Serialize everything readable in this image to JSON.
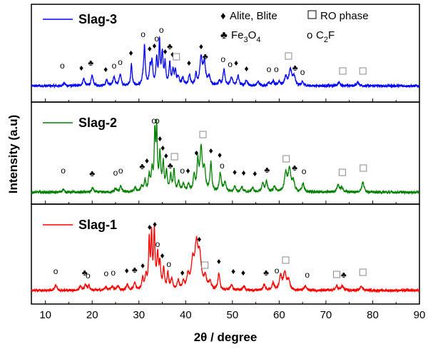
{
  "chart_data": {
    "type": "line",
    "xlabel": "2θ / degree",
    "ylabel": "Intensity (a.u)",
    "xlim": [
      7,
      90
    ],
    "x_ticks": [
      "10",
      "20",
      "30",
      "40",
      "50",
      "60",
      "70",
      "80",
      "90"
    ],
    "grid": false,
    "legend_position": "top-right",
    "legend": [
      {
        "symbol": "♦",
        "label": "Alite, Blite"
      },
      {
        "symbol": "□",
        "label": "RO phase"
      },
      {
        "symbol": "♣",
        "label": "Fe3O4"
      },
      {
        "symbol": "o",
        "label": "C2F"
      }
    ],
    "series": [
      {
        "name": "Slag-3",
        "color": "#0000ff",
        "baseline": 0.12,
        "peaks": [
          [
            14.0,
            0.04,
            0.25
          ],
          [
            18.2,
            0.1,
            0.25
          ],
          [
            20.0,
            0.14,
            0.25
          ],
          [
            23.1,
            0.08,
            0.25
          ],
          [
            24.7,
            0.12,
            0.25
          ],
          [
            26.0,
            0.16,
            0.25
          ],
          [
            28.4,
            0.3,
            0.18
          ],
          [
            30.9,
            0.1,
            0.25
          ],
          [
            31.2,
            0.52,
            0.18
          ],
          [
            32.4,
            0.25,
            0.2
          ],
          [
            32.8,
            0.3,
            0.2
          ],
          [
            33.8,
            0.38,
            0.18
          ],
          [
            34.4,
            0.6,
            0.15
          ],
          [
            35.0,
            0.45,
            0.2
          ],
          [
            35.6,
            0.3,
            0.18
          ],
          [
            36.6,
            0.3,
            0.2
          ],
          [
            37.3,
            0.2,
            0.2
          ],
          [
            37.8,
            0.18,
            0.2
          ],
          [
            38.4,
            0.12,
            0.25
          ],
          [
            39.4,
            0.1,
            0.25
          ],
          [
            40.8,
            0.14,
            0.25
          ],
          [
            42.2,
            0.16,
            0.2
          ],
          [
            43.3,
            0.38,
            0.3
          ],
          [
            44.0,
            0.3,
            0.3
          ],
          [
            45.0,
            0.12,
            0.3
          ],
          [
            47.2,
            0.06,
            0.25
          ],
          [
            48.2,
            0.22,
            0.25
          ],
          [
            49.8,
            0.12,
            0.25
          ],
          [
            51.2,
            0.14,
            0.25
          ],
          [
            53.0,
            0.08,
            0.25
          ],
          [
            55.5,
            0.06,
            0.25
          ],
          [
            57.8,
            0.05,
            0.25
          ],
          [
            58.7,
            0.06,
            0.25
          ],
          [
            60.0,
            0.06,
            0.25
          ],
          [
            61.4,
            0.12,
            0.3
          ],
          [
            62.4,
            0.22,
            0.35
          ],
          [
            63.2,
            0.12,
            0.3
          ],
          [
            65.0,
            0.05,
            0.25
          ],
          [
            72.8,
            0.05,
            0.3
          ],
          [
            76.8,
            0.05,
            0.3
          ]
        ]
      },
      {
        "name": "Slag-2",
        "color": "#008000",
        "baseline": 0.12,
        "peaks": [
          [
            13.8,
            0.04,
            0.25
          ],
          [
            20.1,
            0.06,
            0.25
          ],
          [
            25.0,
            0.05,
            0.25
          ],
          [
            26.1,
            0.08,
            0.25
          ],
          [
            29.2,
            0.06,
            0.25
          ],
          [
            30.6,
            0.08,
            0.25
          ],
          [
            31.3,
            0.16,
            0.2
          ],
          [
            32.2,
            0.22,
            0.2
          ],
          [
            32.8,
            0.28,
            0.2
          ],
          [
            33.4,
            0.78,
            0.16
          ],
          [
            33.8,
            0.84,
            0.16
          ],
          [
            34.5,
            0.5,
            0.2
          ],
          [
            35.2,
            0.38,
            0.2
          ],
          [
            35.9,
            0.26,
            0.2
          ],
          [
            36.8,
            0.22,
            0.2
          ],
          [
            37.5,
            0.3,
            0.2
          ],
          [
            38.5,
            0.14,
            0.25
          ],
          [
            39.5,
            0.1,
            0.25
          ],
          [
            40.6,
            0.1,
            0.25
          ],
          [
            41.8,
            0.22,
            0.22
          ],
          [
            42.6,
            0.4,
            0.22
          ],
          [
            43.3,
            0.58,
            0.28
          ],
          [
            44.0,
            0.3,
            0.28
          ],
          [
            45.4,
            0.4,
            0.22
          ],
          [
            47.4,
            0.26,
            0.25
          ],
          [
            48.4,
            0.14,
            0.25
          ],
          [
            50.5,
            0.08,
            0.25
          ],
          [
            52.0,
            0.07,
            0.25
          ],
          [
            54.3,
            0.06,
            0.25
          ],
          [
            56.5,
            0.12,
            0.25
          ],
          [
            57.3,
            0.14,
            0.25
          ],
          [
            59.0,
            0.08,
            0.25
          ],
          [
            61.4,
            0.26,
            0.3
          ],
          [
            62.2,
            0.3,
            0.35
          ],
          [
            63.0,
            0.14,
            0.3
          ],
          [
            65.1,
            0.12,
            0.25
          ],
          [
            72.6,
            0.1,
            0.3
          ],
          [
            73.4,
            0.06,
            0.3
          ],
          [
            77.9,
            0.14,
            0.3
          ]
        ]
      },
      {
        "name": "Slag-1",
        "color": "#ff0000",
        "baseline": 0.1,
        "peaks": [
          [
            12.2,
            0.08,
            0.25
          ],
          [
            17.5,
            0.06,
            0.25
          ],
          [
            18.6,
            0.08,
            0.25
          ],
          [
            19.3,
            0.06,
            0.25
          ],
          [
            22.9,
            0.05,
            0.25
          ],
          [
            24.3,
            0.06,
            0.25
          ],
          [
            25.5,
            0.06,
            0.25
          ],
          [
            27.5,
            0.08,
            0.25
          ],
          [
            29.1,
            0.1,
            0.25
          ],
          [
            30.8,
            0.16,
            0.22
          ],
          [
            31.5,
            0.2,
            0.2
          ],
          [
            32.2,
            0.68,
            0.16
          ],
          [
            32.7,
            0.74,
            0.16
          ],
          [
            33.3,
            0.8,
            0.18
          ],
          [
            34.0,
            0.46,
            0.2
          ],
          [
            34.5,
            0.34,
            0.2
          ],
          [
            35.3,
            0.28,
            0.2
          ],
          [
            36.2,
            0.22,
            0.2
          ],
          [
            37.0,
            0.14,
            0.25
          ],
          [
            38.4,
            0.12,
            0.25
          ],
          [
            39.5,
            0.1,
            0.25
          ],
          [
            40.5,
            0.18,
            0.3
          ],
          [
            41.5,
            0.34,
            0.4
          ],
          [
            42.3,
            0.56,
            0.4
          ],
          [
            43.0,
            0.42,
            0.4
          ],
          [
            44.2,
            0.16,
            0.35
          ],
          [
            45.2,
            0.1,
            0.3
          ],
          [
            47.1,
            0.22,
            0.25
          ],
          [
            49.8,
            0.08,
            0.25
          ],
          [
            52.5,
            0.06,
            0.25
          ],
          [
            56.8,
            0.08,
            0.25
          ],
          [
            58.7,
            0.1,
            0.25
          ],
          [
            60.3,
            0.2,
            0.3
          ],
          [
            61.2,
            0.24,
            0.35
          ],
          [
            62.0,
            0.14,
            0.3
          ],
          [
            65.6,
            0.06,
            0.25
          ],
          [
            72.3,
            0.06,
            0.3
          ],
          [
            73.5,
            0.06,
            0.3
          ],
          [
            77.6,
            0.06,
            0.3
          ]
        ]
      }
    ],
    "annotations": [
      [
        {
          "x": 13.6,
          "y": 0.28,
          "s": "o"
        },
        {
          "x": 17.7,
          "y": 0.25,
          "s": "♦"
        },
        {
          "x": 19.7,
          "y": 0.32,
          "s": "♣"
        },
        {
          "x": 22.9,
          "y": 0.23,
          "s": "♦"
        },
        {
          "x": 24.7,
          "y": 0.28,
          "s": "o"
        },
        {
          "x": 26.0,
          "y": 0.33,
          "s": "o"
        },
        {
          "x": 28.3,
          "y": 0.46,
          "s": "♦"
        },
        {
          "x": 30.9,
          "y": 0.72,
          "s": "o"
        },
        {
          "x": 32.3,
          "y": 0.52,
          "s": "♦"
        },
        {
          "x": 33.3,
          "y": 0.56,
          "s": "♦"
        },
        {
          "x": 33.8,
          "y": 0.66,
          "s": "o"
        },
        {
          "x": 34.8,
          "y": 0.78,
          "s": "o"
        },
        {
          "x": 35.6,
          "y": 0.48,
          "s": "♦"
        },
        {
          "x": 36.6,
          "y": 0.55,
          "s": "♣"
        },
        {
          "x": 37.2,
          "y": 0.44,
          "s": "♦"
        },
        {
          "x": 38.0,
          "y": 0.4,
          "s": "□"
        },
        {
          "x": 40.7,
          "y": 0.32,
          "s": "♦"
        },
        {
          "x": 43.3,
          "y": 0.55,
          "s": "♦"
        },
        {
          "x": 44.2,
          "y": 0.41,
          "s": "♣"
        },
        {
          "x": 48.0,
          "y": 0.37,
          "s": "o"
        },
        {
          "x": 49.5,
          "y": 0.3,
          "s": "o"
        },
        {
          "x": 50.8,
          "y": 0.32,
          "s": "♦"
        },
        {
          "x": 53.0,
          "y": 0.24,
          "s": "♦"
        },
        {
          "x": 57.8,
          "y": 0.23,
          "s": "o"
        },
        {
          "x": 59.4,
          "y": 0.23,
          "s": "o"
        },
        {
          "x": 62.0,
          "y": 0.41,
          "s": "□"
        },
        {
          "x": 63.4,
          "y": 0.25,
          "s": "♣"
        },
        {
          "x": 65.0,
          "y": 0.19,
          "s": "o"
        },
        {
          "x": 73.6,
          "y": 0.2,
          "s": "□"
        },
        {
          "x": 77.9,
          "y": 0.2,
          "s": "□"
        }
      ],
      [
        {
          "x": 13.8,
          "y": 0.3,
          "s": "o"
        },
        {
          "x": 20.0,
          "y": 0.26,
          "s": "♣"
        },
        {
          "x": 25.0,
          "y": 0.27,
          "s": "o"
        },
        {
          "x": 26.1,
          "y": 0.3,
          "s": "o"
        },
        {
          "x": 30.7,
          "y": 0.36,
          "s": "♣"
        },
        {
          "x": 31.7,
          "y": 0.44,
          "s": "♦"
        },
        {
          "x": 33.2,
          "y": 1.0,
          "s": "o"
        },
        {
          "x": 33.9,
          "y": 1.0,
          "s": "o"
        },
        {
          "x": 34.5,
          "y": 0.75,
          "s": "♦"
        },
        {
          "x": 35.1,
          "y": 0.62,
          "s": "♦"
        },
        {
          "x": 35.8,
          "y": 0.51,
          "s": "♦"
        },
        {
          "x": 36.7,
          "y": 0.37,
          "s": "♣"
        },
        {
          "x": 37.6,
          "y": 0.49,
          "s": "□"
        },
        {
          "x": 39.3,
          "y": 0.3,
          "s": "o"
        },
        {
          "x": 40.5,
          "y": 0.3,
          "s": "♦"
        },
        {
          "x": 42.3,
          "y": 0.55,
          "s": "♦"
        },
        {
          "x": 43.7,
          "y": 0.8,
          "s": "□"
        },
        {
          "x": 45.4,
          "y": 0.58,
          "s": "♦"
        },
        {
          "x": 47.3,
          "y": 0.52,
          "s": "♦"
        },
        {
          "x": 47.8,
          "y": 0.37,
          "s": "o"
        },
        {
          "x": 50.5,
          "y": 0.28,
          "s": "♦"
        },
        {
          "x": 52.4,
          "y": 0.27,
          "s": "♦"
        },
        {
          "x": 54.8,
          "y": 0.26,
          "s": "♦"
        },
        {
          "x": 57.4,
          "y": 0.31,
          "s": "♣"
        },
        {
          "x": 61.5,
          "y": 0.46,
          "s": "□"
        },
        {
          "x": 63.3,
          "y": 0.34,
          "s": "♣"
        },
        {
          "x": 65.3,
          "y": 0.29,
          "s": "o"
        },
        {
          "x": 73.5,
          "y": 0.27,
          "s": "□"
        },
        {
          "x": 78.0,
          "y": 0.33,
          "s": "□"
        }
      ],
      [
        {
          "x": 12.2,
          "y": 0.26,
          "s": "o"
        },
        {
          "x": 18.4,
          "y": 0.24,
          "s": "♣"
        },
        {
          "x": 19.1,
          "y": 0.2,
          "s": "o"
        },
        {
          "x": 23.0,
          "y": 0.23,
          "s": "o"
        },
        {
          "x": 24.5,
          "y": 0.24,
          "s": "o"
        },
        {
          "x": 27.4,
          "y": 0.27,
          "s": "♦"
        },
        {
          "x": 29.1,
          "y": 0.28,
          "s": "♣"
        },
        {
          "x": 30.8,
          "y": 0.34,
          "s": "♦"
        },
        {
          "x": 32.3,
          "y": 0.88,
          "s": "♦"
        },
        {
          "x": 33.4,
          "y": 0.92,
          "s": "♦"
        },
        {
          "x": 34.0,
          "y": 0.64,
          "s": "o"
        },
        {
          "x": 35.0,
          "y": 0.48,
          "s": "♦"
        },
        {
          "x": 36.4,
          "y": 0.36,
          "s": "o"
        },
        {
          "x": 39.3,
          "y": 0.24,
          "s": "♦"
        },
        {
          "x": 42.9,
          "y": 0.71,
          "s": "♦"
        },
        {
          "x": 44.1,
          "y": 0.34,
          "s": "□"
        },
        {
          "x": 47.1,
          "y": 0.4,
          "s": "♦"
        },
        {
          "x": 50.2,
          "y": 0.26,
          "s": "♦"
        },
        {
          "x": 52.3,
          "y": 0.24,
          "s": "♦"
        },
        {
          "x": 57.2,
          "y": 0.24,
          "s": "♣"
        },
        {
          "x": 59.5,
          "y": 0.27,
          "s": "o"
        },
        {
          "x": 61.4,
          "y": 0.41,
          "s": "□"
        },
        {
          "x": 66.0,
          "y": 0.21,
          "s": "o"
        },
        {
          "x": 72.3,
          "y": 0.21,
          "s": "□"
        },
        {
          "x": 73.8,
          "y": 0.21,
          "s": "♣"
        },
        {
          "x": 77.9,
          "y": 0.24,
          "s": "□"
        }
      ]
    ]
  },
  "legend_text": {
    "alite": "Alite, Blite",
    "ro": "RO phase",
    "fe_main": "Fe",
    "fe_sub1": "3",
    "fe_mid": "O",
    "fe_sub2": "4",
    "c2f_main": "C",
    "c2f_sub": "2",
    "c2f_end": "F"
  }
}
